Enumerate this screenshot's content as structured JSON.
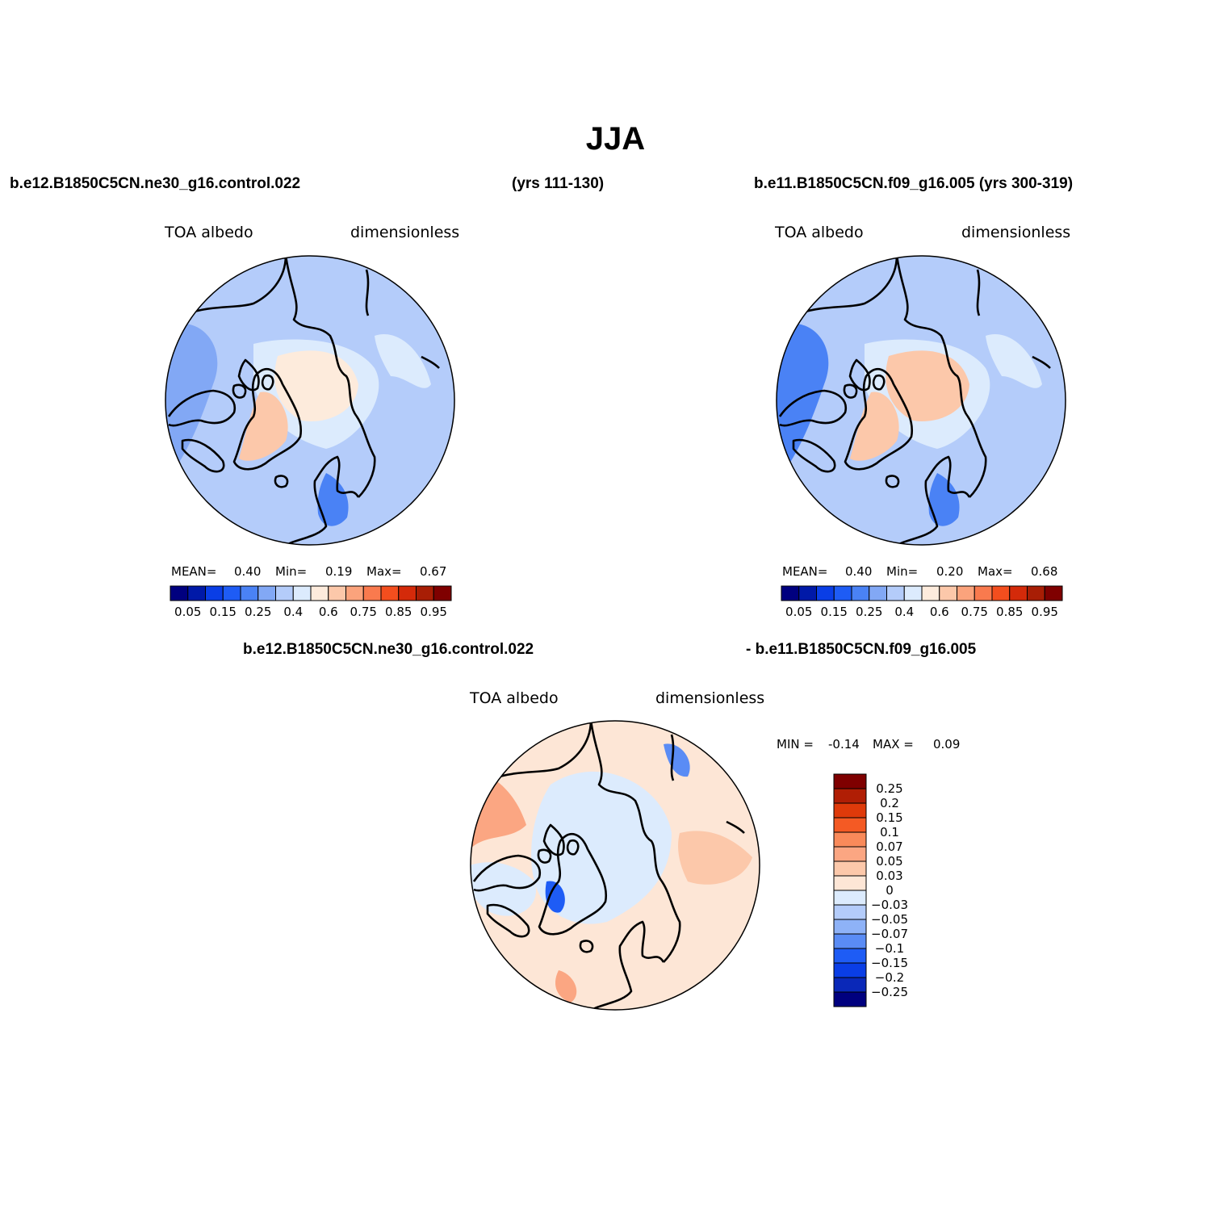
{
  "title": "JJA",
  "case1": {
    "name": "b.e12.B1850C5CN.ne30_g16.control.022",
    "years": "(yrs 111-130)"
  },
  "case2": {
    "name": "b.e11.B1850C5CN.f09_g16.005 (yrs 300-319)"
  },
  "panel1": {
    "variable": "TOA albedo",
    "units": "dimensionless",
    "stats": {
      "mean_label": "MEAN=",
      "mean": "0.40",
      "min_label": "Min=",
      "min": "0.19",
      "max_label": "Max=",
      "max": "0.67"
    }
  },
  "panel2": {
    "variable": "TOA albedo",
    "units": "dimensionless",
    "stats": {
      "mean_label": "MEAN=",
      "mean": "0.40",
      "min_label": "Min=",
      "min": "0.20",
      "max_label": "Max=",
      "max": "0.68"
    }
  },
  "diff": {
    "title_left": "b.e12.B1850C5CN.ne30_g16.control.022",
    "title_right": "- b.e11.B1850C5CN.f09_g16.005",
    "variable": "TOA albedo",
    "units": "dimensionless",
    "stats": {
      "min_label": "MIN =",
      "min": "-0.14",
      "max_label": "MAX =",
      "max": "0.09"
    }
  },
  "colorbar_abs": {
    "colors": [
      "#00007f",
      "#0019a8",
      "#0a3ee6",
      "#1e5cf5",
      "#4a82f5",
      "#82a8f5",
      "#b4ccfa",
      "#dcebfd",
      "#fdebdc",
      "#fcc8aa",
      "#fba37c",
      "#f97a4e",
      "#f34e1e",
      "#d42a0a",
      "#a81e05",
      "#7f0000"
    ],
    "labels": [
      "0.05",
      "0.15",
      "0.25",
      "0.4",
      "0.6",
      "0.75",
      "0.85",
      "0.95"
    ]
  },
  "colorbar_diff": {
    "colors": [
      "#7f0000",
      "#b01e05",
      "#df3a0a",
      "#f45a24",
      "#f98a5a",
      "#fba682",
      "#fcc8aa",
      "#fde6d6",
      "#dcebfd",
      "#b4ccfa",
      "#8eb2f7",
      "#5a8cf5",
      "#1e5cf5",
      "#0a3ee6",
      "#0a28b8",
      "#00007f"
    ],
    "labels": [
      "0.25",
      "0.2",
      "0.15",
      "0.1",
      "0.07",
      "0.05",
      "0.03",
      "0",
      "−0.03",
      "−0.05",
      "−0.07",
      "−0.1",
      "−0.15",
      "−0.2",
      "−0.25"
    ]
  }
}
